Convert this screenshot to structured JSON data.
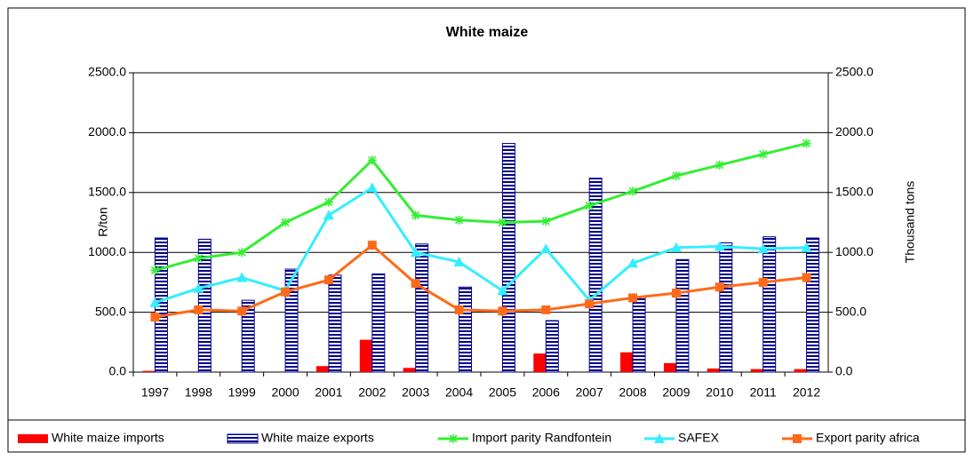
{
  "chart_data": {
    "type": "bar-line",
    "title": "White maize",
    "y_label": "R/ton",
    "y2_label": "Thousand tons",
    "categories": [
      "1997",
      "1998",
      "1999",
      "2000",
      "2001",
      "2002",
      "2003",
      "2004",
      "2005",
      "2006",
      "2007",
      "2008",
      "2009",
      "2010",
      "2011",
      "2012"
    ],
    "ylim": [
      0,
      2500
    ],
    "yticks": [
      {
        "value": 0,
        "label": "0.0"
      },
      {
        "value": 500,
        "label": "500.0"
      },
      {
        "value": 1000,
        "label": "1000.0"
      },
      {
        "value": 1500,
        "label": "1500.0"
      },
      {
        "value": 2000,
        "label": "2000.0"
      },
      {
        "value": 2500,
        "label": "2500.0"
      }
    ],
    "y2lim": [
      0,
      2500
    ],
    "y2ticks": [
      {
        "value": 0,
        "label": "0.0"
      },
      {
        "value": 500,
        "label": "500.0"
      },
      {
        "value": 1000,
        "label": "1000.0"
      },
      {
        "value": 1500,
        "label": "1500.0"
      },
      {
        "value": 2000,
        "label": "2000.0"
      },
      {
        "value": 2500,
        "label": "2500.0"
      }
    ],
    "grid": true,
    "legend": "bottom",
    "series": [
      {
        "name": "White maize imports",
        "type": "bar",
        "color": "#ff0000",
        "values": [
          10,
          0,
          0,
          0,
          50,
          270,
          35,
          0,
          0,
          155,
          0,
          165,
          75,
          30,
          25,
          25
        ]
      },
      {
        "name": "White maize exports",
        "type": "bar",
        "axis": "y2",
        "color": "#00008b",
        "values": [
          1120,
          1110,
          600,
          860,
          810,
          820,
          1070,
          710,
          1910,
          430,
          1620,
          630,
          940,
          1080,
          1130,
          1120
        ]
      },
      {
        "name": "Import parity Randfontein",
        "type": "line",
        "marker": "star",
        "color": "#33ee33",
        "values": [
          850,
          950,
          1000,
          1250,
          1420,
          1770,
          1310,
          1270,
          1250,
          1260,
          1390,
          1510,
          1640,
          1730,
          1820,
          1910
        ]
      },
      {
        "name": "SAFEX",
        "type": "line",
        "marker": "triangle",
        "color": "#33eeff",
        "values": [
          580,
          700,
          790,
          680,
          1310,
          1540,
          1000,
          920,
          680,
          1030,
          600,
          910,
          1040,
          1050,
          1030,
          1040
        ]
      },
      {
        "name": "Export parity africa",
        "type": "line",
        "marker": "square",
        "color": "#ff6a1a",
        "values": [
          460,
          520,
          510,
          670,
          770,
          1060,
          740,
          520,
          510,
          520,
          570,
          620,
          660,
          710,
          750,
          790
        ]
      }
    ]
  }
}
